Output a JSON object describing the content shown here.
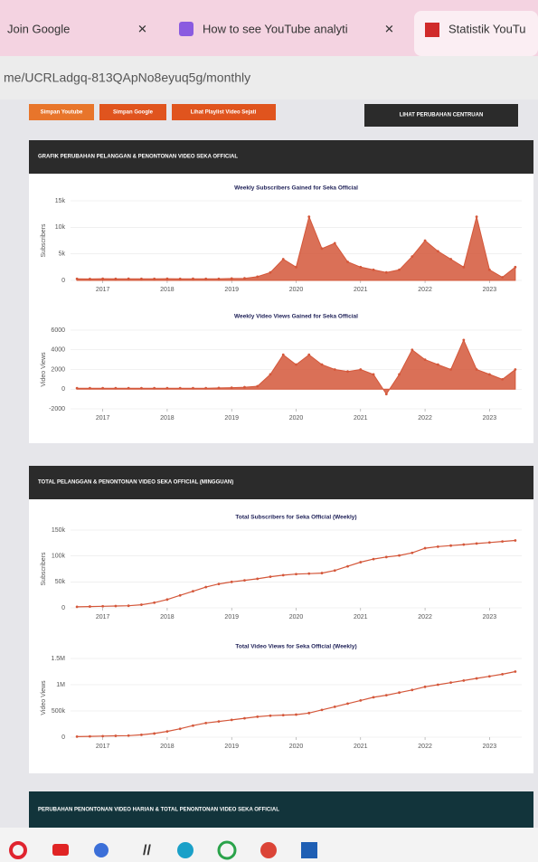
{
  "browser": {
    "tabs": [
      "Join Google",
      "How to see YouTube analyti",
      "Statistik YouTu"
    ],
    "url": "me/UCRLadgq-813QApNo8eyuq5g/monthly"
  },
  "page": {
    "buttons": [
      "Simpan Youtube",
      "Simpan Google",
      "Lihat Playlist Video Sejati"
    ],
    "right_button": "LIHAT PERUBAHAN CENTRUAN",
    "sections": [
      "GRAFIK PERUBAHAN PELANGGAN & PENONTONAN VIDEO SEKA OFFICIAL",
      "TOTAL PELANGGAN & PENONTONAN VIDEO SEKA OFFICIAL (MINGGUAN)",
      "PERUBAHAN PENONTONAN VIDEO HARIAN & TOTAL PENONTONAN VIDEO SEKA OFFICIAL"
    ]
  },
  "chart_data": [
    {
      "type": "area",
      "title": "Weekly Subscribers Gained for Seka Official",
      "ylabel": "Subscribers",
      "color": "#d4573a",
      "x": [
        2016.6,
        2016.8,
        2017,
        2017.2,
        2017.4,
        2017.6,
        2017.8,
        2018,
        2018.2,
        2018.4,
        2018.6,
        2018.8,
        2019,
        2019.2,
        2019.4,
        2019.6,
        2019.8,
        2020,
        2020.2,
        2020.4,
        2020.6,
        2020.8,
        2021,
        2021.2,
        2021.4,
        2021.6,
        2021.8,
        2022,
        2022.2,
        2022.4,
        2022.6,
        2022.8,
        2023,
        2023.2,
        2023.4
      ],
      "values": [
        300,
        280,
        320,
        300,
        310,
        290,
        300,
        320,
        300,
        310,
        300,
        290,
        350,
        400,
        700,
        1500,
        4000,
        2500,
        12000,
        6000,
        7000,
        3500,
        2500,
        2000,
        1500,
        2000,
        4500,
        7500,
        5500,
        4000,
        2500,
        12000,
        2000,
        600,
        2500
      ],
      "xlim": [
        2016.5,
        2023.5
      ],
      "ylim": [
        0,
        15000
      ],
      "xticks": [
        2017,
        2018,
        2019,
        2020,
        2021,
        2022,
        2023
      ],
      "yticks": [
        0,
        {
          "value": 5000,
          "label": "5k"
        },
        {
          "value": 10000,
          "label": "10k"
        },
        {
          "value": 15000,
          "label": "15k"
        }
      ],
      "grid": true
    },
    {
      "type": "area",
      "title": "Weekly Video Views Gained for Seka Official",
      "ylabel": "Video Views",
      "color": "#d4573a",
      "x": [
        2016.6,
        2016.8,
        2017,
        2017.2,
        2017.4,
        2017.6,
        2017.8,
        2018,
        2018.2,
        2018.4,
        2018.6,
        2018.8,
        2019,
        2019.2,
        2019.4,
        2019.6,
        2019.8,
        2020,
        2020.2,
        2020.4,
        2020.6,
        2020.8,
        2021,
        2021.2,
        2021.4,
        2021.6,
        2021.8,
        2022,
        2022.2,
        2022.4,
        2022.6,
        2022.8,
        2023,
        2023.2,
        2023.4
      ],
      "values": [
        100,
        100,
        100,
        100,
        100,
        100,
        100,
        100,
        100,
        100,
        100,
        120,
        150,
        200,
        300,
        1500,
        3500,
        2500,
        3500,
        2500,
        2000,
        1800,
        2000,
        1500,
        -500,
        1500,
        4000,
        3000,
        2500,
        2000,
        5000,
        2000,
        1500,
        1000,
        2000
      ],
      "xlim": [
        2016.5,
        2023.5
      ],
      "ylim": [
        -2000,
        6000
      ],
      "xticks": [
        2017,
        2018,
        2019,
        2020,
        2021,
        2022,
        2023
      ],
      "yticks": [
        -2000,
        0,
        2000,
        4000,
        6000
      ],
      "grid": true
    },
    {
      "type": "line",
      "title": "Total Subscribers for Seka Official (Weekly)",
      "ylabel": "Subscribers",
      "color": "#d4573a",
      "x": [
        2016.6,
        2016.8,
        2017,
        2017.2,
        2017.4,
        2017.6,
        2017.8,
        2018,
        2018.2,
        2018.4,
        2018.6,
        2018.8,
        2019,
        2019.2,
        2019.4,
        2019.6,
        2019.8,
        2020,
        2020.2,
        2020.4,
        2020.6,
        2020.8,
        2021,
        2021.2,
        2021.4,
        2021.6,
        2021.8,
        2022,
        2022.2,
        2022.4,
        2022.6,
        2022.8,
        2023,
        2023.2,
        2023.4
      ],
      "values": [
        2000,
        2500,
        3000,
        3500,
        4000,
        6000,
        10000,
        16000,
        24000,
        32000,
        40000,
        46000,
        50000,
        53000,
        56000,
        60000,
        63000,
        65000,
        66000,
        67000,
        72000,
        80000,
        88000,
        94000,
        98000,
        101000,
        106000,
        115000,
        118000,
        120000,
        122000,
        124000,
        126000,
        128000,
        130000
      ],
      "xlim": [
        2016.5,
        2023.5
      ],
      "ylim": [
        0,
        150000
      ],
      "xticks": [
        2017,
        2018,
        2019,
        2020,
        2021,
        2022,
        2023
      ],
      "yticks": [
        0,
        {
          "value": 50000,
          "label": "50k"
        },
        {
          "value": 100000,
          "label": "100k"
        },
        {
          "value": 150000,
          "label": "150k"
        }
      ],
      "grid": true
    },
    {
      "type": "line",
      "title": "Total Video Views for Seka Official (Weekly)",
      "ylabel": "Video Views",
      "color": "#d4573a",
      "x": [
        2016.6,
        2016.8,
        2017,
        2017.2,
        2017.4,
        2017.6,
        2017.8,
        2018,
        2018.2,
        2018.4,
        2018.6,
        2018.8,
        2019,
        2019.2,
        2019.4,
        2019.6,
        2019.8,
        2020,
        2020.2,
        2020.4,
        2020.6,
        2020.8,
        2021,
        2021.2,
        2021.4,
        2021.6,
        2021.8,
        2022,
        2022.2,
        2022.4,
        2022.6,
        2022.8,
        2023,
        2023.2,
        2023.4
      ],
      "values": [
        10000,
        15000,
        20000,
        25000,
        30000,
        45000,
        70000,
        110000,
        160000,
        220000,
        270000,
        300000,
        330000,
        360000,
        390000,
        410000,
        420000,
        430000,
        460000,
        520000,
        580000,
        640000,
        700000,
        760000,
        800000,
        850000,
        900000,
        960000,
        1000000,
        1040000,
        1080000,
        1120000,
        1160000,
        1200000,
        1250000
      ],
      "xlim": [
        2016.5,
        2023.5
      ],
      "ylim": [
        0,
        1500000
      ],
      "xticks": [
        2017,
        2018,
        2019,
        2020,
        2021,
        2022,
        2023
      ],
      "yticks": [
        0,
        {
          "value": 500000,
          "label": "500k"
        },
        {
          "value": 1000000,
          "label": "1M"
        },
        {
          "value": 1500000,
          "label": "1.5M"
        }
      ],
      "grid": true
    }
  ]
}
